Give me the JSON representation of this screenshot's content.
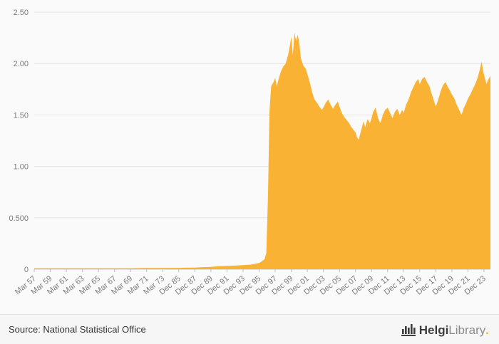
{
  "chart_data": {
    "type": "area",
    "title": "",
    "xlabel": "",
    "ylabel": "",
    "ylim": [
      0,
      2.5
    ],
    "grid": true,
    "legend": "none",
    "y_ticks": [
      "0",
      "0.500",
      "1.00",
      "1.50",
      "2.00",
      "2.50"
    ],
    "y_tick_values": [
      0,
      0.5,
      1.0,
      1.5,
      2.0,
      2.5
    ],
    "x_tick_labels": [
      "Mar 57",
      "Mar 59",
      "Mar 61",
      "Mar 63",
      "Mar 65",
      "Mar 67",
      "Mar 69",
      "Mar 71",
      "Mar 73",
      "Dec 85",
      "Dec 87",
      "Dec 89",
      "Dec 91",
      "Dec 93",
      "Dec 95",
      "Dec 97",
      "Dec 99",
      "Dec 01",
      "Dec 03",
      "Dec 05",
      "Dec 07",
      "Dec 09",
      "Dec 11",
      "Dec 13",
      "Dec 15",
      "Dec 17",
      "Dec 19",
      "Dec 21",
      "Dec 23"
    ],
    "x_unit": "tick-index",
    "x_max_index": 28.4,
    "points": [
      [
        0,
        0.01
      ],
      [
        1,
        0.01
      ],
      [
        2,
        0.01
      ],
      [
        3,
        0.01
      ],
      [
        4,
        0.01
      ],
      [
        5,
        0.01
      ],
      [
        6,
        0.01
      ],
      [
        7,
        0.012
      ],
      [
        8,
        0.012
      ],
      [
        9,
        0.013
      ],
      [
        10,
        0.015
      ],
      [
        10.5,
        0.02
      ],
      [
        11,
        0.022
      ],
      [
        11.5,
        0.03
      ],
      [
        12,
        0.032
      ],
      [
        12.5,
        0.035
      ],
      [
        13,
        0.04
      ],
      [
        13.5,
        0.045
      ],
      [
        14,
        0.06
      ],
      [
        14.2,
        0.08
      ],
      [
        14.35,
        0.1
      ],
      [
        14.45,
        0.16
      ],
      [
        14.55,
        0.7
      ],
      [
        14.65,
        1.55
      ],
      [
        14.75,
        1.78
      ],
      [
        14.9,
        1.82
      ],
      [
        15,
        1.86
      ],
      [
        15.1,
        1.78
      ],
      [
        15.2,
        1.84
      ],
      [
        15.35,
        1.92
      ],
      [
        15.5,
        1.97
      ],
      [
        15.65,
        2.0
      ],
      [
        15.8,
        2.08
      ],
      [
        15.9,
        2.16
      ],
      [
        16,
        2.26
      ],
      [
        16.1,
        2.08
      ],
      [
        16.2,
        2.3
      ],
      [
        16.3,
        2.22
      ],
      [
        16.4,
        2.28
      ],
      [
        16.5,
        2.2
      ],
      [
        16.6,
        2.05
      ],
      [
        16.75,
        1.98
      ],
      [
        16.9,
        1.95
      ],
      [
        17,
        1.9
      ],
      [
        17.15,
        1.82
      ],
      [
        17.3,
        1.72
      ],
      [
        17.45,
        1.65
      ],
      [
        17.6,
        1.62
      ],
      [
        17.75,
        1.58
      ],
      [
        17.9,
        1.55
      ],
      [
        18,
        1.57
      ],
      [
        18.15,
        1.62
      ],
      [
        18.3,
        1.65
      ],
      [
        18.45,
        1.6
      ],
      [
        18.6,
        1.56
      ],
      [
        18.75,
        1.6
      ],
      [
        18.9,
        1.63
      ],
      [
        19,
        1.58
      ],
      [
        19.15,
        1.52
      ],
      [
        19.3,
        1.48
      ],
      [
        19.45,
        1.45
      ],
      [
        19.6,
        1.42
      ],
      [
        19.75,
        1.38
      ],
      [
        19.9,
        1.35
      ],
      [
        20,
        1.33
      ],
      [
        20.1,
        1.28
      ],
      [
        20.2,
        1.26
      ],
      [
        20.35,
        1.35
      ],
      [
        20.5,
        1.44
      ],
      [
        20.6,
        1.38
      ],
      [
        20.75,
        1.46
      ],
      [
        20.9,
        1.42
      ],
      [
        21,
        1.47
      ],
      [
        21.1,
        1.53
      ],
      [
        21.25,
        1.57
      ],
      [
        21.4,
        1.47
      ],
      [
        21.55,
        1.42
      ],
      [
        21.7,
        1.5
      ],
      [
        21.85,
        1.55
      ],
      [
        22,
        1.57
      ],
      [
        22.15,
        1.52
      ],
      [
        22.3,
        1.47
      ],
      [
        22.45,
        1.53
      ],
      [
        22.6,
        1.56
      ],
      [
        22.75,
        1.5
      ],
      [
        22.9,
        1.55
      ],
      [
        23,
        1.52
      ],
      [
        23.15,
        1.6
      ],
      [
        23.3,
        1.65
      ],
      [
        23.45,
        1.72
      ],
      [
        23.6,
        1.77
      ],
      [
        23.75,
        1.82
      ],
      [
        23.9,
        1.85
      ],
      [
        24,
        1.8
      ],
      [
        24.15,
        1.85
      ],
      [
        24.3,
        1.87
      ],
      [
        24.45,
        1.82
      ],
      [
        24.6,
        1.78
      ],
      [
        24.75,
        1.7
      ],
      [
        24.9,
        1.63
      ],
      [
        25,
        1.58
      ],
      [
        25.15,
        1.65
      ],
      [
        25.3,
        1.73
      ],
      [
        25.45,
        1.79
      ],
      [
        25.6,
        1.82
      ],
      [
        25.75,
        1.77
      ],
      [
        25.9,
        1.73
      ],
      [
        26,
        1.7
      ],
      [
        26.15,
        1.66
      ],
      [
        26.3,
        1.6
      ],
      [
        26.45,
        1.55
      ],
      [
        26.6,
        1.5
      ],
      [
        26.75,
        1.57
      ],
      [
        26.9,
        1.62
      ],
      [
        27,
        1.66
      ],
      [
        27.15,
        1.7
      ],
      [
        27.3,
        1.75
      ],
      [
        27.45,
        1.8
      ],
      [
        27.6,
        1.86
      ],
      [
        27.75,
        1.95
      ],
      [
        27.85,
        2.02
      ],
      [
        27.95,
        1.92
      ],
      [
        28.05,
        1.86
      ],
      [
        28.15,
        1.8
      ],
      [
        28.25,
        1.84
      ],
      [
        28.4,
        1.88
      ]
    ],
    "colors": {
      "series": "#f9b233",
      "grid": "#e4e4e4",
      "axis": "#c9c9c9",
      "tick": "#bcbcbc",
      "label": "#7a7a7a"
    }
  },
  "footer": {
    "source_label": "Source: National Statistical Office",
    "logo": {
      "icon": "bar-columns-icon",
      "brand_bold": "Helgi",
      "brand_light": "Library",
      "dot": "."
    }
  }
}
